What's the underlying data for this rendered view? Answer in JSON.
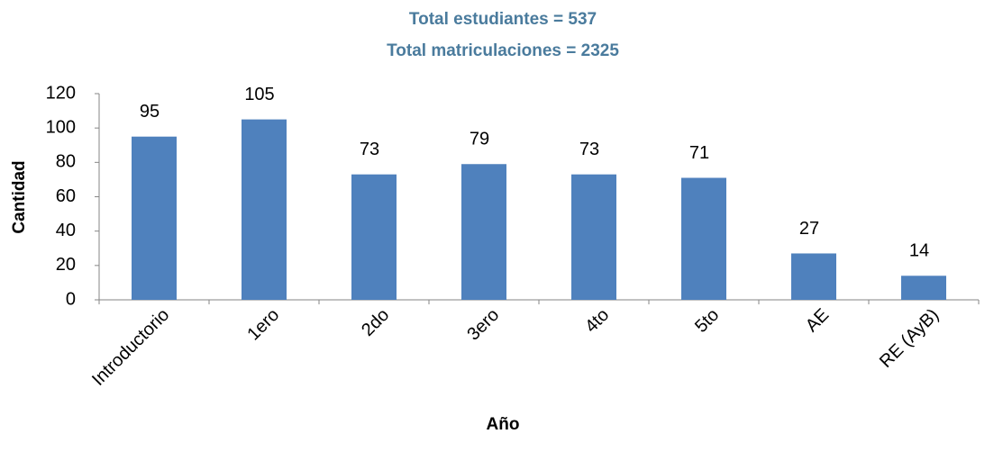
{
  "chart_data": {
    "type": "bar",
    "title": "Total estudiantes = 537",
    "subtitle": "Total matriculaciones = 2325",
    "x_label": "Año",
    "y_label": "Cantidad",
    "categories": [
      "Introductorio",
      "1ero",
      "2do",
      "3ero",
      "4to",
      "5to",
      "AE",
      "RE (AyB)"
    ],
    "values": [
      95,
      105,
      73,
      79,
      73,
      71,
      27,
      14
    ],
    "color": "#4f81bd",
    "ylim": [
      0,
      120
    ],
    "yticks": [
      0,
      20,
      40,
      60,
      80,
      100,
      120
    ],
    "grid": false
  }
}
